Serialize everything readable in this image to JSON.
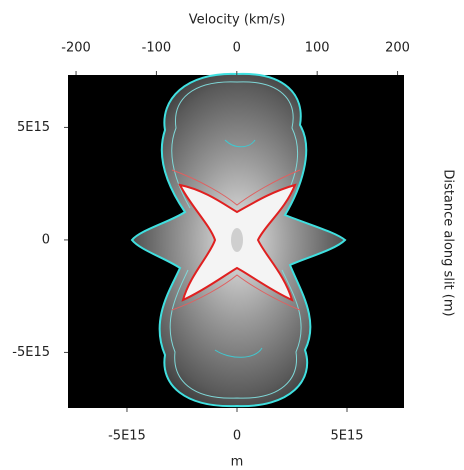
{
  "chart_data": {
    "type": "image",
    "x2label": "Velocity (km/s)",
    "xlabel": "m",
    "ylabel": "Distance along slit (m)",
    "x2lim": [
      -210,
      208
    ],
    "x2ticks": [
      -200,
      -100,
      0,
      100,
      200
    ],
    "xlim": [
      -7680000000000000.0,
      7590000000000000.0
    ],
    "xticks": [
      {
        "value": -5000000000000000.0,
        "label": "-5E15"
      },
      0,
      {
        "value": 5000000000000000.0,
        "label": "5E15"
      }
    ],
    "ylim": [
      -7470000000000000.0,
      7330000000000000.0
    ],
    "yticks": [
      {
        "value": 5000000000000000.0,
        "label": "5E15"
      },
      0,
      {
        "value": -5000000000000000.0,
        "label": "-5E15"
      }
    ]
  }
}
